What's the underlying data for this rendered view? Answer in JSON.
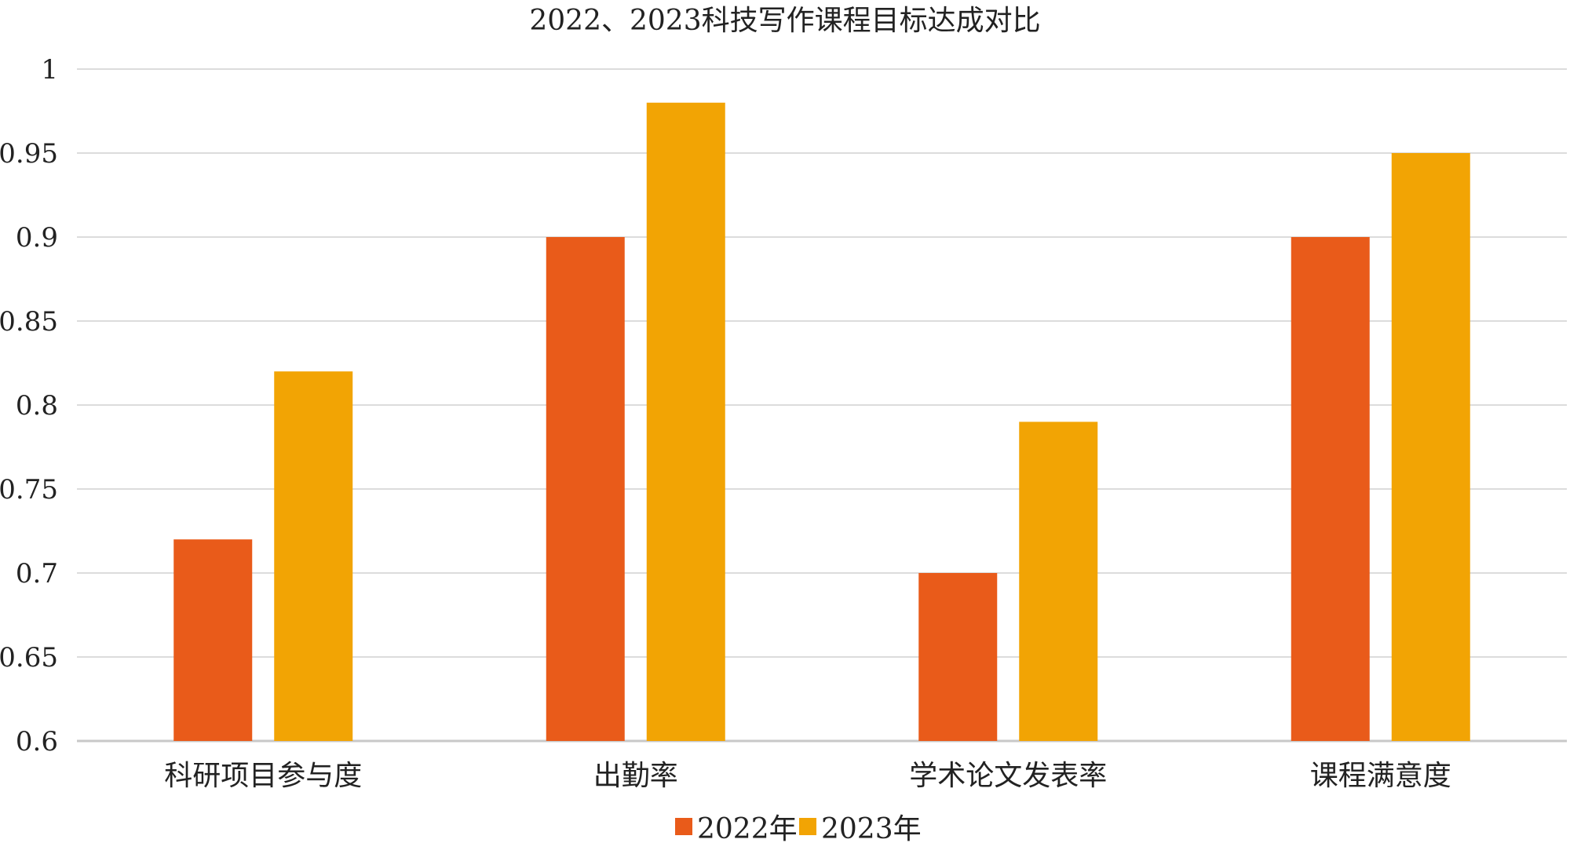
{
  "chart_data": {
    "type": "bar",
    "title": "2022、2023科技写作课程目标达成对比",
    "xlabel": "",
    "ylabel": "",
    "categories": [
      "科研项目参与度",
      "出勤率",
      "学术论文发表率",
      "课程满意度"
    ],
    "series": [
      {
        "name": "2022年",
        "values": [
          0.72,
          0.9,
          0.7,
          0.9
        ],
        "color": "#E95B1A"
      },
      {
        "name": "2023年",
        "values": [
          0.82,
          0.98,
          0.79,
          0.95
        ],
        "color": "#F2A404"
      }
    ],
    "ylim": [
      0.6,
      1.0
    ],
    "yticks": [
      "0.6",
      "0.65",
      "0.7",
      "0.75",
      "0.8",
      "0.85",
      "0.9",
      "0.95",
      "1"
    ],
    "grid": true,
    "legend_position": "bottom-center"
  }
}
